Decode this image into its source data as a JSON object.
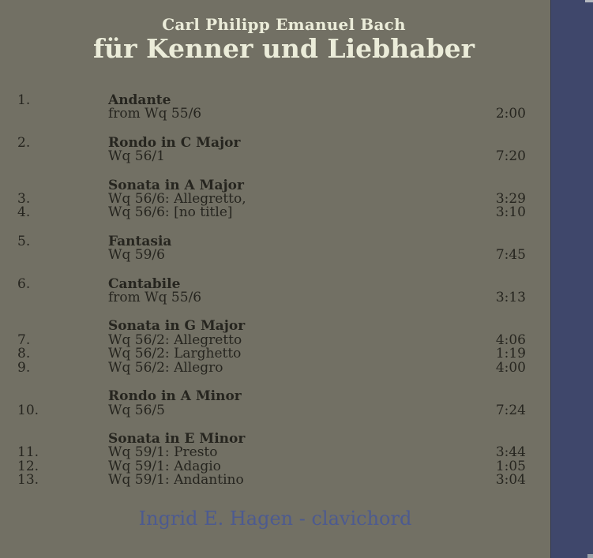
{
  "album": {
    "artist_line": "Carl Philipp Emanuel Bach",
    "title_line": "für Kenner und Liebhaber",
    "performer_line": "Ingrid E. Hagen - clavichord"
  },
  "colors": {
    "background": "#727064",
    "spine": "#3f476b",
    "title_text": "#ebecd9",
    "track_text": "#26251f",
    "performer_text": "#4c5a90"
  },
  "tracks": {
    "groups": [
      {
        "lines": [
          {
            "num": "1.",
            "text": "Andante",
            "bold": true,
            "time": ""
          },
          {
            "num": "",
            "text": "from Wq 55/6",
            "bold": false,
            "time": "2:00"
          }
        ]
      },
      {
        "lines": [
          {
            "num": "2.",
            "text": "Rondo in C Major",
            "bold": true,
            "time": ""
          },
          {
            "num": "",
            "text": "Wq 56/1",
            "bold": false,
            "time": "7:20"
          }
        ]
      },
      {
        "lines": [
          {
            "num": "",
            "text": "Sonata in A Major",
            "bold": true,
            "time": ""
          },
          {
            "num": "3.",
            "text": "Wq 56/6: Allegretto,",
            "bold": false,
            "time": "3:29"
          },
          {
            "num": "4.",
            "text": "Wq 56/6: [no title]",
            "bold": false,
            "time": "3:10"
          }
        ]
      },
      {
        "lines": [
          {
            "num": "5.",
            "text": "Fantasia",
            "bold": true,
            "time": ""
          },
          {
            "num": "",
            "text": "Wq 59/6",
            "bold": false,
            "time": "7:45"
          }
        ]
      },
      {
        "lines": [
          {
            "num": "6.",
            "text": "Cantabile",
            "bold": true,
            "time": ""
          },
          {
            "num": "",
            "text": "from Wq 55/6",
            "bold": false,
            "time": "3:13"
          }
        ]
      },
      {
        "lines": [
          {
            "num": "",
            "text": "Sonata in G Major",
            "bold": true,
            "time": ""
          },
          {
            "num": "7.",
            "text": "Wq 56/2: Allegretto",
            "bold": false,
            "time": "4:06"
          },
          {
            "num": "8.",
            "text": "Wq 56/2: Larghetto",
            "bold": false,
            "time": "1:19"
          },
          {
            "num": "9.",
            "text": "Wq 56/2: Allegro",
            "bold": false,
            "time": "4:00"
          }
        ]
      },
      {
        "lines": [
          {
            "num": "",
            "text": "Rondo in A Minor",
            "bold": true,
            "time": ""
          },
          {
            "num": "10.",
            "text": "Wq 56/5",
            "bold": false,
            "time": "7:24"
          }
        ]
      },
      {
        "lines": [
          {
            "num": "",
            "text": "Sonata in E Minor",
            "bold": true,
            "time": ""
          },
          {
            "num": "11.",
            "text": "Wq 59/1: Presto",
            "bold": false,
            "time": "3:44"
          },
          {
            "num": "12.",
            "text": "Wq 59/1: Adagio",
            "bold": false,
            "time": "1:05"
          },
          {
            "num": "13.",
            "text": "Wq 59/1: Andantino",
            "bold": false,
            "time": "3:04"
          }
        ]
      }
    ]
  }
}
